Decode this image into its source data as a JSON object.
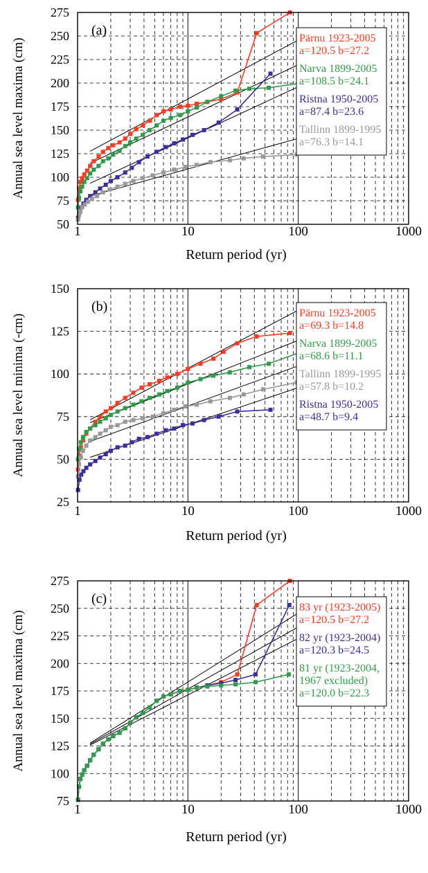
{
  "chart_data": [
    {
      "type": "scatter",
      "panel_label": "(a)",
      "xlabel": "Return period (yr)",
      "ylabel": "Annual sea level maxima (cm)",
      "xscale": "log",
      "xlim": [
        1,
        1000
      ],
      "ylim": [
        50,
        275
      ],
      "yticks": [
        50,
        75,
        100,
        125,
        150,
        175,
        200,
        225,
        250,
        275
      ],
      "xticks": [
        1,
        10,
        100,
        1000
      ],
      "xtick_labels": [
        "1",
        "10",
        "100",
        "1000"
      ],
      "grid": true,
      "legend_position": "right",
      "series": [
        {
          "name": "Pärnu 1923-2005",
          "params": "a=120.5 b=27.2",
          "color": "#ff3b1f",
          "fit": {
            "a": 120.5,
            "b": 27.2
          },
          "x": [
            1.01,
            1.03,
            1.06,
            1.1,
            1.15,
            1.22,
            1.3,
            1.4,
            1.55,
            1.7,
            1.9,
            2.1,
            2.4,
            2.7,
            3.0,
            3.4,
            3.9,
            4.5,
            5.2,
            6.0,
            7.0,
            8.5,
            10.0,
            12.0,
            15.0,
            20.0,
            28.0,
            42.0,
            84.0
          ],
          "y": [
            76,
            88,
            95,
            99,
            103,
            107,
            112,
            117,
            122,
            127,
            131,
            134,
            137,
            141,
            146,
            151,
            155,
            160,
            166,
            170,
            172,
            175,
            176,
            178,
            180,
            183,
            190,
            253,
            275
          ]
        },
        {
          "name": "Narva 1899-2005",
          "params": "a=108.5 b=24.1",
          "color": "#2e9c48",
          "fit": {
            "a": 108.5,
            "b": 24.1
          },
          "x": [
            1.01,
            1.03,
            1.06,
            1.1,
            1.15,
            1.22,
            1.3,
            1.4,
            1.55,
            1.7,
            1.9,
            2.1,
            2.4,
            2.7,
            3.0,
            3.4,
            3.9,
            4.5,
            5.2,
            6.0,
            7.0,
            8.5,
            10.0,
            12.0,
            15.0,
            20.0,
            27.0,
            36.0,
            54.0,
            107.0
          ],
          "y": [
            68,
            78,
            85,
            90,
            95,
            99,
            104,
            108,
            112,
            117,
            120,
            124,
            128,
            133,
            137,
            141,
            145,
            150,
            155,
            160,
            163,
            166,
            170,
            174,
            180,
            186,
            192,
            194,
            195,
            200
          ]
        },
        {
          "name": "Ristna 1950-2005",
          "params": "a=87.4 b=23.6",
          "color": "#3a2ea0",
          "fit": {
            "a": 87.4,
            "b": 23.6
          },
          "x": [
            1.01,
            1.04,
            1.08,
            1.13,
            1.2,
            1.3,
            1.45,
            1.6,
            1.8,
            2.0,
            2.3,
            2.7,
            3.1,
            3.6,
            4.3,
            5.2,
            6.3,
            7.5,
            9.0,
            11.0,
            14.0,
            19.0,
            28.0,
            56.0
          ],
          "y": [
            57,
            63,
            68,
            72,
            76,
            80,
            84,
            88,
            92,
            96,
            100,
            105,
            110,
            116,
            122,
            127,
            132,
            136,
            140,
            145,
            150,
            158,
            172,
            210
          ]
        },
        {
          "name": "Tallinn 1899-1995",
          "params": "a=76.3 b=14.1",
          "color": "#999999",
          "fit": {
            "a": 76.3,
            "b": 14.1
          },
          "x": [
            1.01,
            1.03,
            1.06,
            1.1,
            1.16,
            1.24,
            1.35,
            1.5,
            1.7,
            1.95,
            2.3,
            2.7,
            3.2,
            3.9,
            4.8,
            6.0,
            7.5,
            9.5,
            12.0,
            16.0,
            24.0,
            32.0,
            48.0,
            97.0
          ],
          "y": [
            55,
            60,
            64,
            68,
            71,
            74,
            77,
            80,
            84,
            87,
            90,
            93,
            96,
            99,
            102,
            105,
            108,
            111,
            113,
            116,
            118,
            120,
            122,
            124
          ]
        }
      ]
    },
    {
      "type": "scatter",
      "panel_label": "(b)",
      "xlabel": "Return period (yr)",
      "ylabel": "Annual sea level minima (-cm)",
      "xscale": "log",
      "xlim": [
        1,
        1000
      ],
      "ylim": [
        25,
        150
      ],
      "yticks": [
        25,
        50,
        75,
        100,
        125,
        150
      ],
      "xticks": [
        1,
        10,
        100,
        1000
      ],
      "xtick_labels": [
        "1",
        "10",
        "100",
        "1000"
      ],
      "grid": true,
      "legend_position": "right",
      "series": [
        {
          "name": "Pärnu 1923-2005",
          "params": "a=69.3 b=14.8",
          "color": "#ff3b1f",
          "fit": {
            "a": 69.3,
            "b": 14.8
          },
          "x": [
            1.01,
            1.03,
            1.07,
            1.12,
            1.2,
            1.3,
            1.45,
            1.6,
            1.8,
            2.0,
            2.3,
            2.7,
            3.2,
            3.8,
            4.5,
            5.5,
            6.5,
            8.0,
            10.0,
            13.0,
            17.0,
            21.0,
            28.0,
            42.0,
            84.0
          ],
          "y": [
            44,
            52,
            57,
            61,
            65,
            68,
            72,
            75,
            78,
            80,
            83,
            86,
            89,
            92,
            94,
            96,
            98,
            100,
            103,
            106,
            109,
            113,
            118,
            122,
            124
          ]
        },
        {
          "name": "Narva 1899-2005",
          "params": "a=68.6 b=11.1",
          "color": "#2e9c48",
          "fit": {
            "a": 68.6,
            "b": 11.1
          },
          "x": [
            1.01,
            1.03,
            1.07,
            1.12,
            1.2,
            1.3,
            1.45,
            1.6,
            1.8,
            2.0,
            2.3,
            2.7,
            3.2,
            3.8,
            4.5,
            5.5,
            6.5,
            8.0,
            10.0,
            13.0,
            17.0,
            24.0,
            36.0,
            54.0,
            107.0
          ],
          "y": [
            50,
            56,
            60,
            63,
            66,
            68,
            70,
            72,
            74,
            76,
            78,
            80,
            82,
            84,
            86,
            88,
            90,
            92,
            95,
            97,
            99,
            101,
            104,
            106,
            113
          ]
        },
        {
          "name": "Tallinn 1899-1995",
          "params": "a=57.8 b=10.2",
          "color": "#999999",
          "fit": {
            "a": 57.8,
            "b": 10.2
          },
          "x": [
            1.01,
            1.03,
            1.07,
            1.12,
            1.2,
            1.3,
            1.45,
            1.6,
            1.8,
            2.0,
            2.3,
            2.7,
            3.2,
            3.9,
            4.8,
            6.0,
            7.5,
            9.5,
            12.0,
            16.0,
            24.0,
            32.0,
            48.0,
            97.0
          ],
          "y": [
            40,
            47,
            51,
            55,
            58,
            61,
            63,
            65,
            67,
            69,
            70,
            72,
            73,
            74,
            75,
            77,
            79,
            81,
            82,
            84,
            86,
            88,
            91,
            95
          ]
        },
        {
          "name": "Ristna 1950-2005",
          "params": "a=48.7 b=9.4",
          "color": "#3a2ea0",
          "fit": {
            "a": 48.7,
            "b": 9.4
          },
          "x": [
            1.01,
            1.04,
            1.08,
            1.13,
            1.2,
            1.3,
            1.45,
            1.6,
            1.8,
            2.0,
            2.3,
            2.7,
            3.1,
            3.6,
            4.3,
            5.2,
            6.3,
            7.5,
            9.0,
            11.0,
            14.0,
            19.0,
            28.0,
            56.0
          ],
          "y": [
            32,
            38,
            41,
            43,
            45,
            47,
            49,
            51,
            53,
            55,
            57,
            58,
            60,
            62,
            63,
            65,
            67,
            68,
            70,
            71,
            73,
            75,
            78,
            79
          ]
        }
      ]
    },
    {
      "type": "scatter",
      "panel_label": "(c)",
      "xlabel": "Return period (yr)",
      "ylabel": "Annual sea level maxima (cm)",
      "xscale": "log",
      "xlim": [
        1,
        1000
      ],
      "ylim": [
        75,
        275
      ],
      "yticks": [
        75,
        100,
        125,
        150,
        175,
        200,
        225,
        250,
        275
      ],
      "xticks": [
        1,
        10,
        100,
        1000
      ],
      "xtick_labels": [
        "1",
        "10",
        "100",
        "1000"
      ],
      "grid": true,
      "legend_position": "right",
      "series": [
        {
          "name": "83 yr (1923-2005)",
          "params": "a=120.5 b=27.2",
          "color": "#ff3b1f",
          "fit": {
            "a": 120.5,
            "b": 27.2
          },
          "x": [
            1.01,
            1.03,
            1.06,
            1.1,
            1.15,
            1.22,
            1.3,
            1.4,
            1.55,
            1.7,
            1.9,
            2.1,
            2.4,
            2.7,
            3.0,
            3.4,
            3.9,
            4.5,
            5.2,
            6.0,
            7.0,
            8.5,
            10.0,
            12.0,
            15.0,
            20.0,
            28.0,
            42.0,
            84.0
          ],
          "y": [
            76,
            88,
            95,
            99,
            103,
            107,
            112,
            117,
            122,
            127,
            131,
            134,
            137,
            141,
            146,
            151,
            155,
            160,
            166,
            170,
            172,
            175,
            176,
            178,
            180,
            183,
            190,
            253,
            275
          ]
        },
        {
          "name": "82 yr (1923-2004)",
          "params": "a=120.3 b=24.5",
          "color": "#3a2ea0",
          "fit": {
            "a": 120.3,
            "b": 24.5
          },
          "x": [
            1.01,
            1.03,
            1.06,
            1.1,
            1.15,
            1.22,
            1.3,
            1.4,
            1.55,
            1.7,
            1.9,
            2.1,
            2.4,
            2.7,
            3.0,
            3.4,
            3.9,
            4.5,
            5.2,
            6.0,
            7.0,
            8.5,
            10.0,
            12.0,
            15.0,
            20.0,
            27.0,
            41.0,
            83.0
          ],
          "y": [
            76,
            88,
            95,
            99,
            103,
            107,
            112,
            117,
            122,
            127,
            131,
            134,
            137,
            141,
            146,
            151,
            155,
            160,
            166,
            170,
            172,
            175,
            176,
            178,
            180,
            182,
            185,
            190,
            253
          ]
        },
        {
          "name": "81 yr (1923-2004, 1967 excluded)",
          "name_lines": [
            "81 yr (1923-2004,",
            "1967 excluded)"
          ],
          "params": "a=120.0 b=22.3",
          "color": "#2e9c48",
          "fit": {
            "a": 120.0,
            "b": 22.3
          },
          "x": [
            1.01,
            1.03,
            1.06,
            1.1,
            1.15,
            1.22,
            1.3,
            1.4,
            1.55,
            1.7,
            1.9,
            2.1,
            2.4,
            2.7,
            3.0,
            3.4,
            3.9,
            4.5,
            5.2,
            6.0,
            7.0,
            8.5,
            10.0,
            12.0,
            15.0,
            20.0,
            27.0,
            41.0,
            82.0
          ],
          "y": [
            76,
            88,
            95,
            99,
            103,
            107,
            112,
            117,
            122,
            127,
            131,
            134,
            137,
            141,
            146,
            151,
            155,
            160,
            166,
            170,
            172,
            175,
            176,
            178,
            179,
            180,
            181,
            183,
            190
          ]
        }
      ]
    }
  ]
}
